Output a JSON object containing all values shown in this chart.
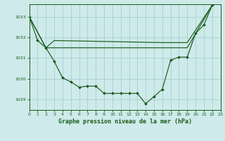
{
  "background_color": "#ceeaea",
  "grid_color": "#aacfcf",
  "line_color": "#1a5c1a",
  "title": "Graphe pression niveau de la mer (hPa)",
  "xlim": [
    0,
    23
  ],
  "ylim": [
    1028.5,
    1033.6
  ],
  "yticks": [
    1029,
    1030,
    1031,
    1032,
    1033
  ],
  "xticks": [
    0,
    1,
    2,
    3,
    4,
    5,
    6,
    7,
    8,
    9,
    10,
    11,
    12,
    13,
    14,
    15,
    16,
    17,
    18,
    19,
    20,
    21,
    22,
    23
  ],
  "x_detail": [
    0,
    1,
    2,
    3,
    4,
    5,
    6,
    7,
    8,
    9,
    10,
    11,
    12,
    13,
    14,
    15,
    16,
    17,
    18,
    19,
    20,
    21,
    22
  ],
  "y_detail": [
    1033.0,
    1031.85,
    1031.5,
    1030.85,
    1030.05,
    1029.85,
    1029.6,
    1029.65,
    1029.65,
    1029.3,
    1029.3,
    1029.3,
    1029.3,
    1029.3,
    1028.8,
    1029.15,
    1029.5,
    1030.9,
    1031.05,
    1031.05,
    1032.2,
    1032.6,
    1033.55
  ],
  "x_flat": [
    0,
    2,
    3,
    19,
    22
  ],
  "y_flat": [
    1033.0,
    1031.5,
    1031.5,
    1031.5,
    1033.55
  ],
  "x_diag": [
    0,
    2,
    3,
    16,
    19,
    22
  ],
  "y_diag": [
    1033.0,
    1031.5,
    1031.85,
    1031.75,
    1031.75,
    1033.55
  ]
}
